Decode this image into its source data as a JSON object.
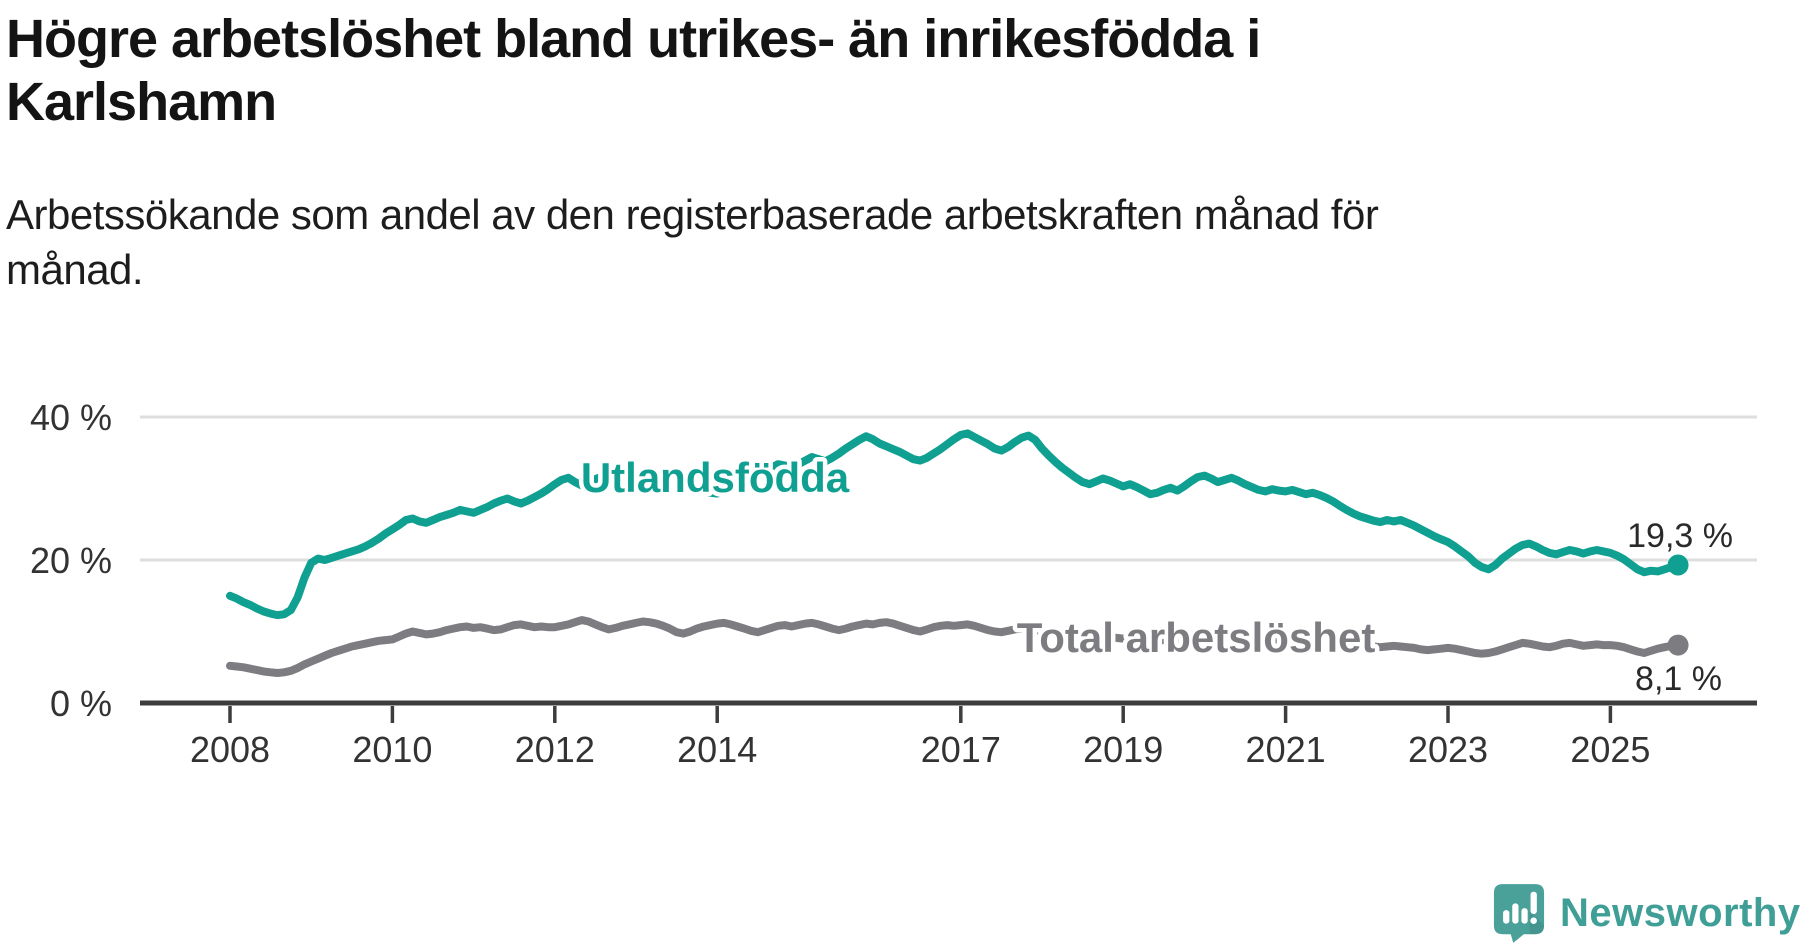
{
  "title": "Högre arbetslöshet bland utrikes- än inrikesfödda i Karlshamn",
  "subtitle": "Arbetssökande som andel av den registerbaserade arbetskraften månad för månad.",
  "branding": {
    "name": "Newsworthy",
    "icon": "speech-bubble-bar-chart",
    "icon_color": "#4aa19a",
    "text_color": "#3f9f97"
  },
  "chart_data": {
    "type": "line",
    "title": "Högre arbetslöshet bland utrikes- än inrikesfödda i Karlshamn",
    "subtitle": "Arbetssökande som andel av den registerbaserade arbetskraften månad för månad.",
    "x_unit": "month",
    "x_start_year": 2008,
    "x_end": "2025-11",
    "ylim": [
      0,
      42
    ],
    "grid": "horizontal",
    "axis_color": "#3d3d3d",
    "grid_color": "#dedede",
    "yticks": [
      {
        "label": "0 %",
        "value": 0
      },
      {
        "label": "20 %",
        "value": 20
      },
      {
        "label": "40 %",
        "value": 40
      }
    ],
    "xticks": [
      {
        "label": "2008",
        "year": 2008
      },
      {
        "label": "2010",
        "year": 2010
      },
      {
        "label": "2012",
        "year": 2012
      },
      {
        "label": "2014",
        "year": 2014
      },
      {
        "label": "2017",
        "year": 2017
      },
      {
        "label": "2019",
        "year": 2019
      },
      {
        "label": "2021",
        "year": 2021
      },
      {
        "label": "2023",
        "year": 2023
      },
      {
        "label": "2025",
        "year": 2025
      }
    ],
    "series": [
      {
        "name": "Utlandsfödda",
        "color": "#10a091",
        "end_label": "19,3 %",
        "end_value": 19.3,
        "values": [
          15.0,
          14.6,
          14.1,
          13.7,
          13.2,
          12.8,
          12.5,
          12.3,
          12.4,
          13.0,
          14.8,
          17.5,
          19.6,
          20.2,
          20.0,
          20.3,
          20.6,
          20.9,
          21.2,
          21.5,
          21.9,
          22.4,
          23.0,
          23.7,
          24.3,
          24.9,
          25.6,
          25.8,
          25.4,
          25.2,
          25.6,
          26.0,
          26.3,
          26.6,
          27.0,
          26.8,
          26.6,
          27.0,
          27.4,
          27.9,
          28.3,
          28.6,
          28.2,
          27.9,
          28.3,
          28.8,
          29.3,
          29.9,
          30.6,
          31.2,
          31.5,
          30.9,
          30.4,
          30.8,
          31.3,
          31.7,
          31.3,
          31.6,
          31.9,
          32.1,
          32.3,
          31.9,
          31.5,
          31.9,
          32.3,
          32.1,
          31.4,
          30.7,
          30.2,
          29.9,
          29.6,
          29.4,
          29.3,
          29.6,
          30.0,
          30.4,
          30.8,
          31.3,
          31.8,
          32.3,
          32.9,
          33.4,
          33.2,
          33.0,
          33.4,
          33.9,
          34.4,
          34.1,
          33.8,
          34.3,
          34.9,
          35.6,
          36.2,
          36.8,
          37.3,
          36.9,
          36.3,
          35.9,
          35.5,
          35.1,
          34.6,
          34.1,
          33.9,
          34.3,
          34.9,
          35.5,
          36.2,
          36.9,
          37.5,
          37.7,
          37.2,
          36.7,
          36.2,
          35.6,
          35.3,
          35.8,
          36.5,
          37.1,
          37.4,
          36.8,
          35.6,
          34.6,
          33.7,
          32.9,
          32.2,
          31.5,
          30.9,
          30.6,
          31.0,
          31.4,
          31.1,
          30.7,
          30.3,
          30.6,
          30.2,
          29.7,
          29.2,
          29.4,
          29.8,
          30.1,
          29.7,
          30.3,
          31.0,
          31.6,
          31.8,
          31.4,
          30.9,
          31.2,
          31.5,
          31.1,
          30.6,
          30.2,
          29.8,
          29.6,
          29.9,
          29.7,
          29.6,
          29.8,
          29.5,
          29.2,
          29.4,
          29.1,
          28.7,
          28.2,
          27.6,
          27.0,
          26.5,
          26.1,
          25.8,
          25.5,
          25.3,
          25.6,
          25.4,
          25.6,
          25.2,
          24.8,
          24.3,
          23.8,
          23.3,
          22.9,
          22.5,
          21.9,
          21.2,
          20.5,
          19.6,
          19.0,
          18.7,
          19.3,
          20.2,
          20.9,
          21.6,
          22.1,
          22.3,
          21.9,
          21.4,
          21.0,
          20.8,
          21.1,
          21.4,
          21.2,
          20.9,
          21.2,
          21.4,
          21.2,
          21.0,
          20.6,
          20.1,
          19.4,
          18.7,
          18.3,
          18.5,
          18.4,
          18.7,
          19.0,
          19.3
        ]
      },
      {
        "name": "Total arbetslöshet",
        "color": "#7c7c81",
        "end_label": "8,1 %",
        "end_value": 8.1,
        "values": [
          5.2,
          5.1,
          5.0,
          4.8,
          4.6,
          4.4,
          4.3,
          4.2,
          4.3,
          4.5,
          4.9,
          5.4,
          5.8,
          6.2,
          6.6,
          7.0,
          7.3,
          7.6,
          7.9,
          8.1,
          8.3,
          8.5,
          8.7,
          8.8,
          8.9,
          9.3,
          9.7,
          10.0,
          9.8,
          9.6,
          9.7,
          9.9,
          10.2,
          10.4,
          10.6,
          10.7,
          10.5,
          10.6,
          10.4,
          10.2,
          10.3,
          10.6,
          10.9,
          11.0,
          10.8,
          10.6,
          10.7,
          10.6,
          10.6,
          10.8,
          11.0,
          11.3,
          11.6,
          11.4,
          11.0,
          10.6,
          10.3,
          10.5,
          10.8,
          11.0,
          11.2,
          11.4,
          11.3,
          11.1,
          10.8,
          10.4,
          9.9,
          9.7,
          10.0,
          10.4,
          10.7,
          10.9,
          11.1,
          11.2,
          11.0,
          10.7,
          10.4,
          10.1,
          9.9,
          10.2,
          10.5,
          10.8,
          10.9,
          10.7,
          10.9,
          11.1,
          11.2,
          11.0,
          10.7,
          10.4,
          10.2,
          10.4,
          10.7,
          10.9,
          11.1,
          11.0,
          11.2,
          11.3,
          11.1,
          10.8,
          10.5,
          10.2,
          10.0,
          10.3,
          10.6,
          10.8,
          10.9,
          10.8,
          10.9,
          11.0,
          10.8,
          10.5,
          10.2,
          10.0,
          9.9,
          10.1,
          10.3,
          10.4,
          10.3,
          10.1,
          10.0,
          9.9,
          9.7,
          9.5,
          9.3,
          9.1,
          9.0,
          9.1,
          9.2,
          9.3,
          9.2,
          9.1,
          9.0,
          9.1,
          9.0,
          8.9,
          8.8,
          8.7,
          8.8,
          8.9,
          8.8,
          8.7,
          8.8,
          9.0,
          9.2,
          9.1,
          9.0,
          9.3,
          9.5,
          9.4,
          9.2,
          9.0,
          8.9,
          8.8,
          8.7,
          8.8,
          8.7,
          8.8,
          8.6,
          8.5,
          8.4,
          8.5,
          8.4,
          8.3,
          8.1,
          8.0,
          7.9,
          7.8,
          7.8,
          7.9,
          7.8,
          7.9,
          8.0,
          7.9,
          7.8,
          7.7,
          7.5,
          7.4,
          7.5,
          7.6,
          7.7,
          7.6,
          7.4,
          7.2,
          7.0,
          6.9,
          7.0,
          7.2,
          7.5,
          7.8,
          8.1,
          8.4,
          8.3,
          8.1,
          7.9,
          7.8,
          8.0,
          8.3,
          8.4,
          8.2,
          8.0,
          8.1,
          8.2,
          8.1,
          8.1,
          8.0,
          7.8,
          7.5,
          7.2,
          7.0,
          7.3,
          7.6,
          7.8,
          8.0,
          8.1
        ]
      }
    ]
  }
}
